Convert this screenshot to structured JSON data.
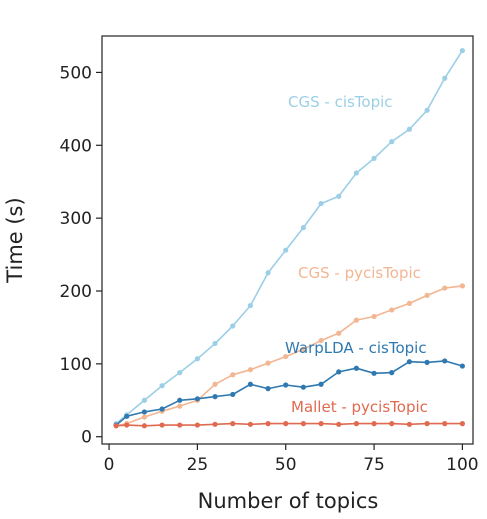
{
  "chart_data": {
    "type": "line",
    "title": "",
    "xlabel": "Number of topics",
    "ylabel": "Time (s)",
    "xlim": [
      -2,
      103
    ],
    "ylim": [
      -10,
      550
    ],
    "x_ticks": [
      0,
      25,
      50,
      75,
      100
    ],
    "y_ticks": [
      0,
      100,
      200,
      300,
      400,
      500
    ],
    "grid": false,
    "legend": "inline labels",
    "x": [
      2,
      5,
      10,
      15,
      20,
      25,
      30,
      35,
      40,
      45,
      50,
      55,
      60,
      65,
      70,
      75,
      80,
      85,
      90,
      95,
      100
    ],
    "series": [
      {
        "name": "CGS - cisTopic",
        "color": "#9ccfe6",
        "values": [
          18,
          30,
          50,
          70,
          88,
          107,
          128,
          152,
          180,
          225,
          256,
          287,
          320,
          330,
          362,
          382,
          405,
          422,
          448,
          492,
          530
        ]
      },
      {
        "name": "CGS - pycisTopic",
        "color": "#f3b692",
        "values": [
          15,
          18,
          27,
          35,
          42,
          50,
          72,
          85,
          92,
          101,
          110,
          120,
          132,
          142,
          160,
          165,
          174,
          183,
          194,
          204,
          207
        ]
      },
      {
        "name": "WarpLDA - cisTopic",
        "color": "#2f79b0",
        "values": [
          16,
          28,
          34,
          38,
          50,
          52,
          55,
          58,
          72,
          66,
          71,
          68,
          72,
          89,
          94,
          87,
          88,
          103,
          102,
          104,
          97
        ]
      },
      {
        "name": "Mallet - pycisTopic",
        "color": "#e06a50",
        "values": [
          15,
          16,
          15,
          16,
          16,
          16,
          17,
          18,
          17,
          18,
          18,
          18,
          18,
          17,
          18,
          18,
          18,
          17,
          18,
          18,
          18
        ]
      }
    ],
    "annotations": [
      "CGS - cisTopic",
      "CGS - pycisTopic",
      "WarpLDA - cisTopic",
      "Mallet - pycisTopic"
    ]
  }
}
